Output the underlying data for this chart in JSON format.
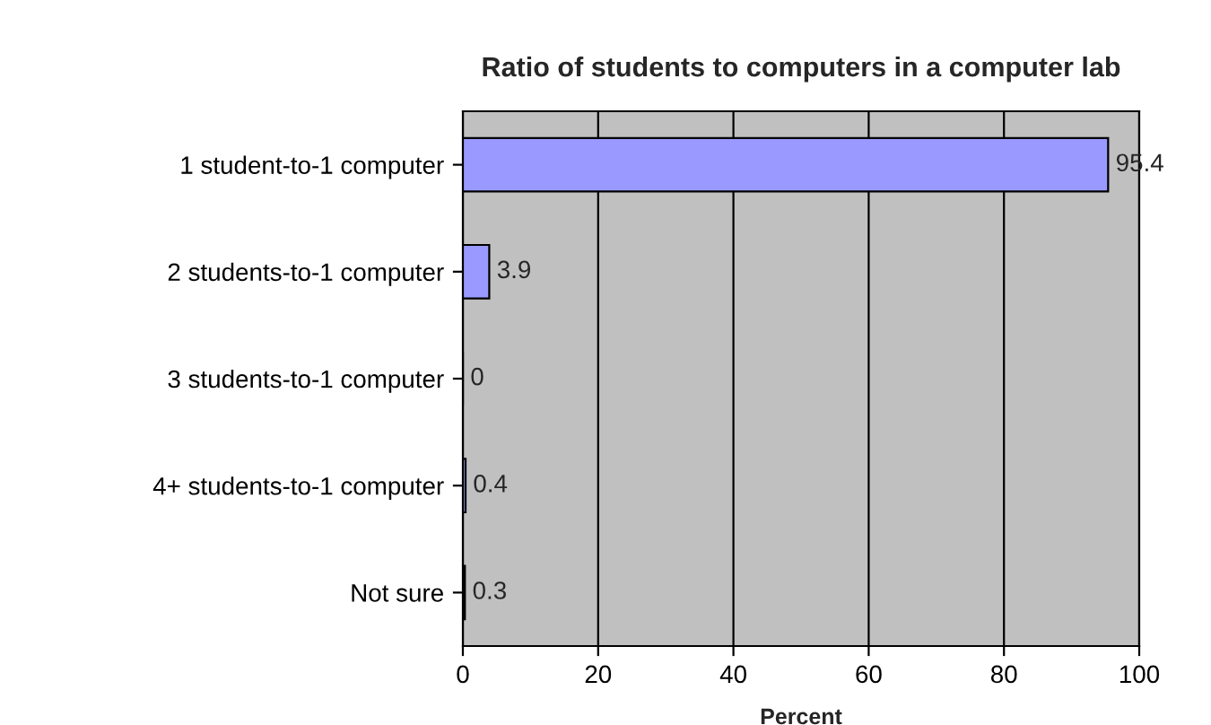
{
  "chart_data": {
    "type": "bar",
    "orientation": "horizontal",
    "title": "Ratio of students to computers in a computer lab",
    "xlabel": "Percent",
    "categories": [
      "1 student-to-1 computer",
      "2 students-to-1 computer",
      "3 students-to-1 computer",
      "4+ students-to-1 computer",
      "Not sure"
    ],
    "values": [
      95.4,
      3.9,
      0,
      0.4,
      0.3
    ],
    "color": "#9999ff",
    "data_labels": true,
    "xlim": [
      0,
      100
    ],
    "xticks": [
      0,
      20,
      40,
      60,
      80,
      100
    ],
    "grid": "x"
  }
}
